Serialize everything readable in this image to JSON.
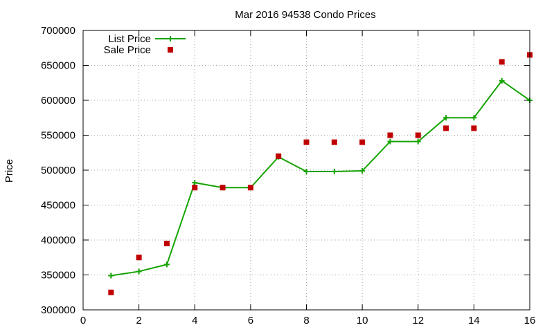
{
  "chart_data": {
    "type": "line",
    "title": "Mar 2016 94538 Condo Prices",
    "xlabel": "",
    "ylabel": "Price",
    "xlim": [
      0,
      16
    ],
    "ylim": [
      300000,
      700000
    ],
    "x_ticks": [
      "0",
      "2",
      "4",
      "6",
      "8",
      "10",
      "12",
      "14",
      "16"
    ],
    "y_ticks": [
      "300000",
      "350000",
      "400000",
      "450000",
      "500000",
      "550000",
      "600000",
      "650000",
      "700000"
    ],
    "grid": true,
    "legend_position": "top-left",
    "series": [
      {
        "name": "List Price",
        "style": "line-with-plus-markers",
        "color": "#14a300",
        "x": [
          1,
          2,
          3,
          4,
          5,
          6,
          7,
          8,
          9,
          10,
          11,
          12,
          13,
          14,
          15,
          16
        ],
        "values": [
          349000,
          355000,
          365000,
          482000,
          475000,
          475000,
          519000,
          498000,
          498000,
          499000,
          541000,
          541000,
          575000,
          575000,
          628000,
          600000
        ]
      },
      {
        "name": "Sale Price",
        "style": "square-markers",
        "color": "#c00000",
        "x": [
          1,
          2,
          3,
          4,
          5,
          6,
          7,
          8,
          9,
          10,
          11,
          12,
          13,
          14,
          15,
          16
        ],
        "values": [
          325000,
          375000,
          395000,
          475000,
          475000,
          475000,
          520000,
          540000,
          540000,
          540000,
          550000,
          550000,
          560000,
          560000,
          655000,
          665000
        ]
      }
    ]
  }
}
